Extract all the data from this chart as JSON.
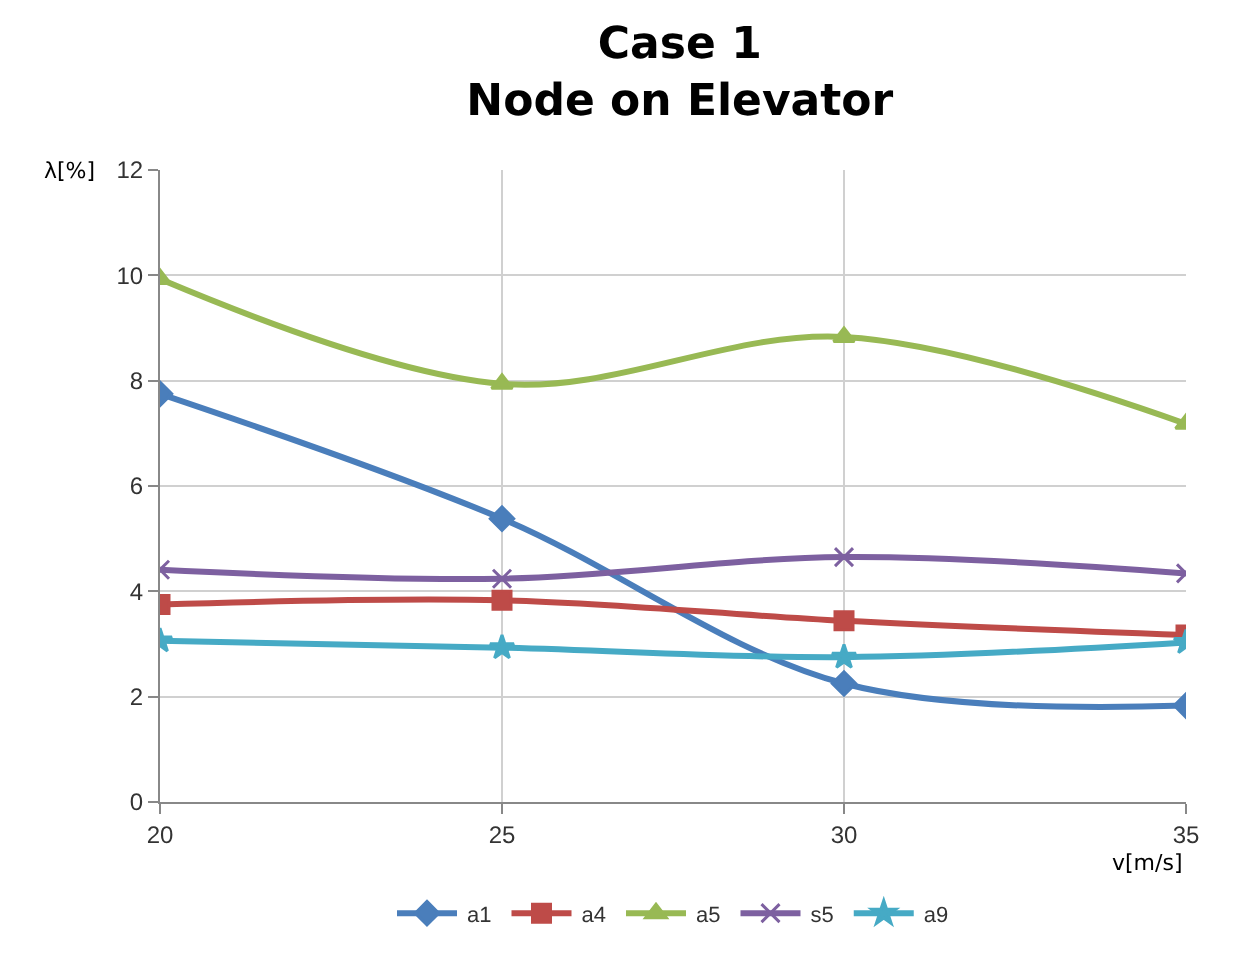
{
  "chart_data": {
    "type": "line",
    "title": "Case 1\nNode on Elevator",
    "xlabel": "v[m/s]",
    "ylabel": "λ[%]",
    "x": [
      20,
      25,
      30,
      35
    ],
    "xlim": [
      20,
      35
    ],
    "xticks": [
      20,
      25,
      30,
      35
    ],
    "ylim": [
      0,
      12
    ],
    "yticks": [
      0,
      2,
      4,
      6,
      8,
      10,
      12
    ],
    "grid": true,
    "legend": "bottom",
    "series": [
      {
        "name": "a1",
        "color": "#4a7ebb",
        "marker": "diamond",
        "values": [
          7.75,
          5.38,
          2.25,
          1.83
        ]
      },
      {
        "name": "a4",
        "color": "#be4b48",
        "marker": "square",
        "values": [
          3.75,
          3.83,
          3.44,
          3.17
        ]
      },
      {
        "name": "a5",
        "color": "#98b954",
        "marker": "triangle",
        "values": [
          9.93,
          7.94,
          8.83,
          7.18
        ]
      },
      {
        "name": "s5",
        "color": "#7d60a0",
        "marker": "cross",
        "values": [
          4.41,
          4.24,
          4.65,
          4.34
        ]
      },
      {
        "name": "a9",
        "color": "#46aac5",
        "marker": "star",
        "values": [
          3.06,
          2.93,
          2.75,
          3.03
        ]
      }
    ]
  }
}
